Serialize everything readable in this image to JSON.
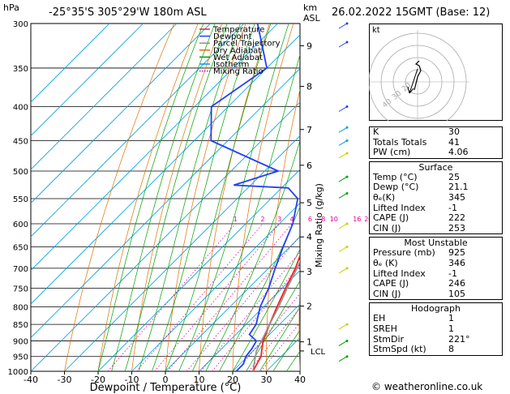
{
  "header": {
    "location": "-25°35'S  305°29'W  180m  ASL",
    "datetime": "26.02.2022  15GMT  (Base: 12)",
    "hpa_label": "hPa",
    "km_label": "km",
    "asl_label": "ASL",
    "mixing_axis_label": "Mixing Ratio (g/kg)",
    "credit": "© weatheronline.co.uk"
  },
  "chart_data": {
    "type": "line",
    "subtype": "skew-T log-P diagram",
    "xlabel": "Dewpoint / Temperature (°C)",
    "ylabel": "hPa",
    "xlim": [
      -40,
      40
    ],
    "ylim": [
      1000,
      300
    ],
    "y_scale": "log",
    "pressure_ticks": [
      300,
      350,
      400,
      450,
      500,
      550,
      600,
      650,
      700,
      750,
      800,
      850,
      900,
      950,
      1000
    ],
    "temp_ticks": [
      -40,
      -30,
      -20,
      -10,
      0,
      10,
      20,
      30,
      40
    ],
    "km_ticks": [
      {
        "label": "9",
        "p": 324
      },
      {
        "label": "8",
        "p": 373
      },
      {
        "label": "7",
        "p": 433
      },
      {
        "label": "6",
        "p": 490
      },
      {
        "label": "5",
        "p": 558
      },
      {
        "label": "4",
        "p": 628
      },
      {
        "label": "3",
        "p": 708
      },
      {
        "label": "2",
        "p": 798
      },
      {
        "label": "1",
        "p": 903
      }
    ],
    "lcl": {
      "label": "LCL",
      "p": 932
    },
    "mixing_ratio_labels": [
      "1",
      "2",
      "3",
      "4",
      "6",
      "8",
      "10",
      "16",
      "20",
      "25"
    ],
    "legend": {
      "position": "top-left",
      "entries": [
        {
          "name": "Temperature",
          "color": "#ff2020",
          "style": "solid"
        },
        {
          "name": "Dewpoint",
          "color": "#2040ff",
          "style": "solid"
        },
        {
          "name": "Parcel Trajectory",
          "color": "#909090",
          "style": "solid"
        },
        {
          "name": "Dry Adiabat",
          "color": "#e07000",
          "style": "solid"
        },
        {
          "name": "Wet Adiabat",
          "color": "#00a000",
          "style": "solid"
        },
        {
          "name": "Isotherm",
          "color": "#00a0e0",
          "style": "solid"
        },
        {
          "name": "Mixing Ratio",
          "color": "#e000a0",
          "style": "dotted"
        }
      ]
    },
    "series": [
      {
        "name": "Temperature",
        "color": "#ff2020",
        "points": [
          {
            "p": 1000,
            "t": 26
          },
          {
            "p": 975,
            "t": 25
          },
          {
            "p": 950,
            "t": 24
          },
          {
            "p": 925,
            "t": 22
          },
          {
            "p": 900,
            "t": 20
          },
          {
            "p": 850,
            "t": 17
          },
          {
            "p": 800,
            "t": 14
          },
          {
            "p": 750,
            "t": 11
          },
          {
            "p": 700,
            "t": 8
          },
          {
            "p": 650,
            "t": 4
          },
          {
            "p": 600,
            "t": 1
          },
          {
            "p": 550,
            "t": -3
          },
          {
            "p": 500,
            "t": -7
          },
          {
            "p": 450,
            "t": -12
          },
          {
            "p": 400,
            "t": -19
          },
          {
            "p": 350,
            "t": -28
          },
          {
            "p": 300,
            "t": -38
          }
        ]
      },
      {
        "name": "Dewpoint",
        "color": "#2040ff",
        "points": [
          {
            "p": 1000,
            "t": 21
          },
          {
            "p": 975,
            "t": 21
          },
          {
            "p": 950,
            "t": 19.5
          },
          {
            "p": 925,
            "t": 19
          },
          {
            "p": 900,
            "t": 18
          },
          {
            "p": 880,
            "t": 14
          },
          {
            "p": 850,
            "t": 13
          },
          {
            "p": 800,
            "t": 9
          },
          {
            "p": 750,
            "t": 6
          },
          {
            "p": 700,
            "t": 2
          },
          {
            "p": 650,
            "t": -2
          },
          {
            "p": 600,
            "t": -6
          },
          {
            "p": 550,
            "t": -12
          },
          {
            "p": 530,
            "t": -18
          },
          {
            "p": 525,
            "t": -35
          },
          {
            "p": 500,
            "t": -26
          },
          {
            "p": 450,
            "t": -55
          },
          {
            "p": 400,
            "t": -65
          },
          {
            "p": 350,
            "t": -60
          },
          {
            "p": 300,
            "t": -76
          }
        ]
      },
      {
        "name": "Parcel Trajectory",
        "color": "#909090",
        "points": [
          {
            "p": 1000,
            "t": 26
          },
          {
            "p": 932,
            "t": 21
          },
          {
            "p": 900,
            "t": 19.5
          },
          {
            "p": 850,
            "t": 17
          },
          {
            "p": 800,
            "t": 14.5
          },
          {
            "p": 750,
            "t": 11.5
          },
          {
            "p": 700,
            "t": 8.5
          },
          {
            "p": 650,
            "t": 5
          },
          {
            "p": 600,
            "t": 1.5
          },
          {
            "p": 550,
            "t": -2.5
          },
          {
            "p": 500,
            "t": -7
          },
          {
            "p": 450,
            "t": -12.5
          },
          {
            "p": 400,
            "t": -19.5
          },
          {
            "p": 350,
            "t": -28
          },
          {
            "p": 300,
            "t": -38
          }
        ]
      }
    ]
  },
  "hodograph": {
    "label": "kt",
    "ring_labels": [
      "40",
      "30",
      "20"
    ]
  },
  "indices": {
    "rows": [
      {
        "k": "K",
        "v": "30"
      },
      {
        "k": "Totals Totals",
        "v": "41"
      },
      {
        "k": "PW (cm)",
        "v": "4.06"
      }
    ]
  },
  "surface": {
    "title": "Surface",
    "rows": [
      {
        "k": "Temp (°C)",
        "v": "25"
      },
      {
        "k": "Dewp (°C)",
        "v": "21.1"
      },
      {
        "k": "θₑ(K)",
        "v": "345"
      },
      {
        "k": "Lifted Index",
        "v": "-1"
      },
      {
        "k": "CAPE (J)",
        "v": "222"
      },
      {
        "k": "CIN (J)",
        "v": "253"
      }
    ]
  },
  "most_unstable": {
    "title": "Most Unstable",
    "rows": [
      {
        "k": "Pressure (mb)",
        "v": "925"
      },
      {
        "k": "θₑ (K)",
        "v": "346"
      },
      {
        "k": "Lifted Index",
        "v": "-1"
      },
      {
        "k": "CAPE (J)",
        "v": "246"
      },
      {
        "k": "CIN (J)",
        "v": "105"
      }
    ]
  },
  "hodo_table": {
    "title": "Hodograph",
    "rows": [
      {
        "k": "EH",
        "v": "1"
      },
      {
        "k": "SREH",
        "v": "1"
      },
      {
        "k": "StmDir",
        "v": "221°"
      },
      {
        "k": "StmSpd (kt)",
        "v": "8"
      }
    ]
  }
}
